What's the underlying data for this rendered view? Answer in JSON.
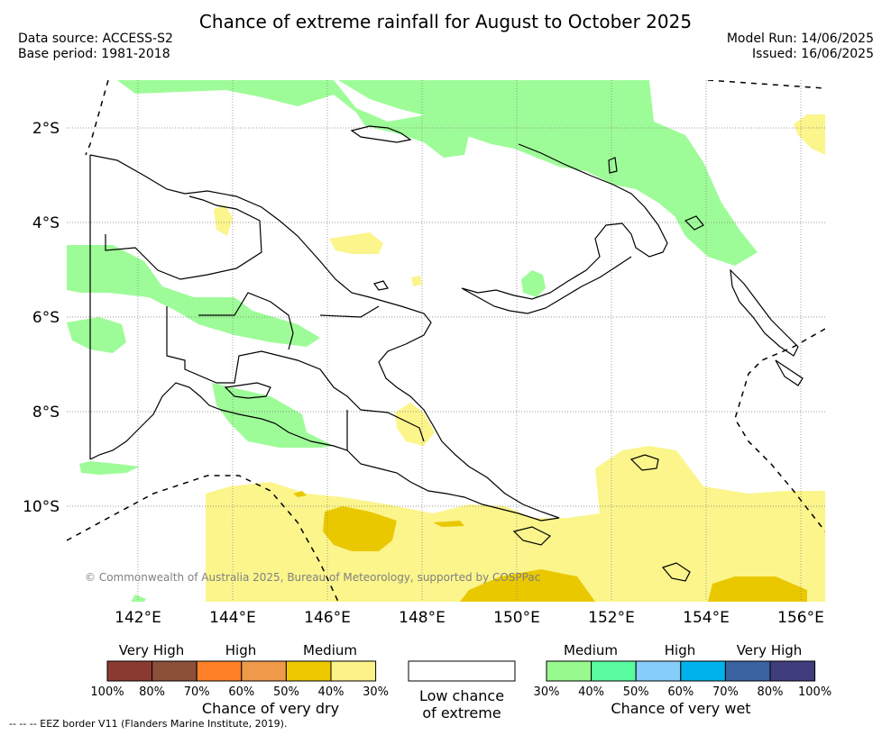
{
  "title": "Chance of extreme rainfall for August to October 2025",
  "data_source": "Data source: ACCESS-S2",
  "base_period": "Base period: 1981-2018",
  "model_run": "Model Run: 14/06/2025",
  "issued": "Issued: 16/06/2025",
  "copyright": "© Commonwealth of Australia 2025, Bureau of Meteorology, supported by COSPPac",
  "eez_note": "--  --  -- EEZ border V11 (Flanders Marine Institute, 2019).",
  "lat_ticks": [
    "2°S",
    "4°S",
    "6°S",
    "8°S",
    "10°S"
  ],
  "lon_ticks": [
    "142°E",
    "144°E",
    "146°E",
    "148°E",
    "150°E",
    "152°E",
    "154°E",
    "156°E"
  ],
  "legend_dry": {
    "categories": [
      "Very High",
      "High",
      "Medium"
    ],
    "colors": [
      "#8b3a32",
      "#8b5038",
      "#ff8026",
      "#ee9a4a",
      "#eec800",
      "#fdf28a"
    ],
    "ticks": [
      "100%",
      "80%",
      "70%",
      "60%",
      "50%",
      "40%",
      "30%"
    ],
    "caption": "Chance of very dry"
  },
  "legend_low": {
    "caption_line1": "Low chance",
    "caption_line2": "of extreme",
    "color": "#ffffff"
  },
  "legend_wet": {
    "categories": [
      "Medium",
      "High",
      "Very High"
    ],
    "colors": [
      "#98f98e",
      "#58fba0",
      "#86cdf9",
      "#00b2ea",
      "#3862a0",
      "#3f3d7c"
    ],
    "ticks": [
      "30%",
      "40%",
      "50%",
      "60%",
      "70%",
      "80%",
      "100%"
    ],
    "caption": "Chance of very wet"
  },
  "map_colors": {
    "wet_medium": "#9efc98",
    "dry_light": "#fbf58c",
    "dry_dark": "#eac800",
    "land_outline": "#000000",
    "grid": "#7a7a7a"
  }
}
